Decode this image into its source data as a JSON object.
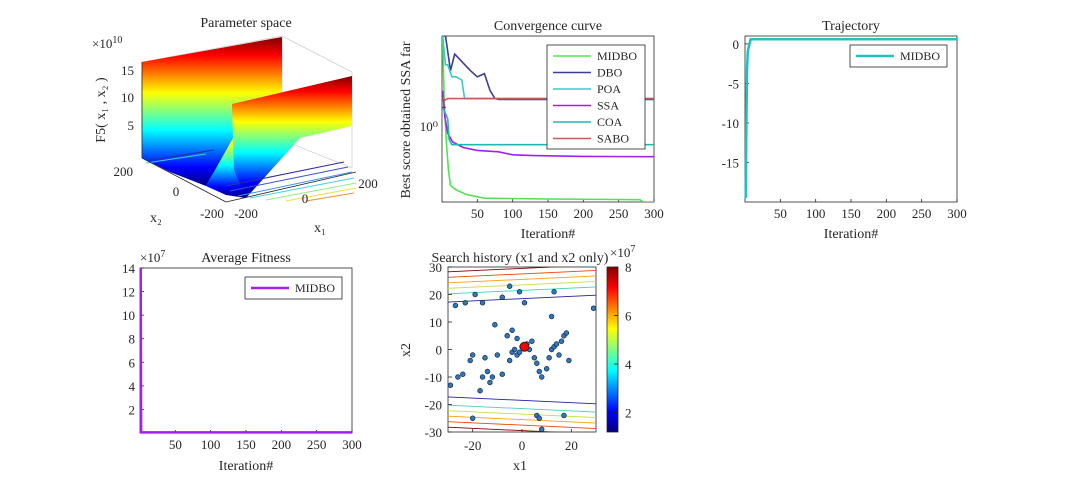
{
  "chart_data": [
    {
      "id": "parameter_space",
      "type": "surface",
      "title": "Parameter space",
      "zlabel": "F5( x₁ , x₂ )",
      "z_exponent": "×10",
      "z_exponent_power": "10",
      "zticks": [
        "5",
        "10",
        "15"
      ],
      "x1_label": "x₁",
      "x2_label": "x₂",
      "x1_ticks": [
        "-200",
        "0",
        "200"
      ],
      "x2_ticks": [
        "200",
        "0",
        "-200"
      ],
      "colormap": [
        "#00007f",
        "#0000ff",
        "#007fff",
        "#00ffff",
        "#7fff7f",
        "#ffff00",
        "#ff7f00",
        "#ff0000",
        "#7f0000"
      ]
    },
    {
      "id": "convergence_curve",
      "type": "line",
      "title": "Convergence curve",
      "xlabel": "Iteration#",
      "ylabel": "Best score obtained SSA far",
      "yscale": "log",
      "xlim": [
        0,
        300
      ],
      "ylim": [
        0.35,
        2.2
      ],
      "xticks": [
        "50",
        "100",
        "150",
        "200",
        "250",
        "300"
      ],
      "ytick_label": "10⁰",
      "ytick_value": 1,
      "legend_position": "top-right",
      "series": [
        {
          "name": "MIDBO",
          "color": "#4fe54f",
          "points": [
            [
              1,
              2.2
            ],
            [
              3,
              1.1
            ],
            [
              6,
              0.7
            ],
            [
              9,
              0.5
            ],
            [
              12,
              0.42
            ],
            [
              20,
              0.4
            ],
            [
              35,
              0.38
            ],
            [
              60,
              0.365
            ],
            [
              150,
              0.362
            ],
            [
              250,
              0.36
            ],
            [
              280,
              0.359
            ],
            [
              285,
              0.35
            ],
            [
              300,
              0.35
            ]
          ]
        },
        {
          "name": "DBO",
          "color": "#3b3f8f",
          "points": [
            [
              1,
              2.2
            ],
            [
              5,
              2.2
            ],
            [
              12,
              1.5
            ],
            [
              18,
              1.8
            ],
            [
              25,
              1.7
            ],
            [
              40,
              1.5
            ],
            [
              50,
              1.4
            ],
            [
              60,
              1.45
            ],
            [
              68,
              1.2
            ],
            [
              75,
              1.1
            ],
            [
              80,
              1.09
            ],
            [
              200,
              1.09
            ],
            [
              300,
              1.09
            ]
          ]
        },
        {
          "name": "POA",
          "color": "#3cc8c8",
          "points": [
            [
              1,
              2.2
            ],
            [
              5,
              1.6
            ],
            [
              8,
              1.6
            ],
            [
              14,
              1.4
            ],
            [
              20,
              1.4
            ],
            [
              28,
              1.35
            ],
            [
              32,
              1.1
            ],
            [
              300,
              1.1
            ]
          ]
        },
        {
          "name": "SSA",
          "color": "#a020f0",
          "points": [
            [
              1,
              1.2
            ],
            [
              4,
              0.9
            ],
            [
              8,
              0.75
            ],
            [
              15,
              0.68
            ],
            [
              30,
              0.64
            ],
            [
              50,
              0.62
            ],
            [
              80,
              0.61
            ],
            [
              100,
              0.59
            ],
            [
              130,
              0.585
            ],
            [
              200,
              0.58
            ],
            [
              300,
              0.578
            ]
          ]
        },
        {
          "name": "COA",
          "color": "#1fb8b0",
          "points": [
            [
              1,
              1.0
            ],
            [
              4,
              0.95
            ],
            [
              8,
              0.88
            ],
            [
              10,
              0.7
            ],
            [
              14,
              0.66
            ],
            [
              300,
              0.66
            ]
          ]
        },
        {
          "name": "SABO",
          "color": "#c85a5a",
          "points": [
            [
              1,
              1.12
            ],
            [
              4,
              1.08
            ],
            [
              8,
              1.1
            ],
            [
              300,
              1.1
            ]
          ]
        }
      ]
    },
    {
      "id": "trajectory",
      "type": "line",
      "title": "Trajectory",
      "xlabel": "Iteration#",
      "xlim": [
        0,
        300
      ],
      "ylim": [
        -20,
        1
      ],
      "xticks": [
        "50",
        "100",
        "150",
        "200",
        "250",
        "300"
      ],
      "yticks": [
        "0",
        "-5",
        "-10",
        "-15"
      ],
      "ytick_values": [
        0,
        -5,
        -10,
        -15
      ],
      "legend_position": "top-right",
      "series": [
        {
          "name": "MIDBO",
          "color": "#1fc0c0",
          "points": [
            [
              1,
              -19.5
            ],
            [
              2,
              -10
            ],
            [
              3,
              -3
            ],
            [
              4,
              -1
            ],
            [
              5,
              -0.5
            ],
            [
              8,
              0.6
            ],
            [
              300,
              0.6
            ]
          ]
        }
      ]
    },
    {
      "id": "average_fitness",
      "type": "line",
      "title": "Average Fitness",
      "xlabel": "Iteration#",
      "y_exponent": "×10",
      "y_exponent_power": "7",
      "xlim": [
        0,
        300
      ],
      "ylim": [
        0,
        14
      ],
      "xticks": [
        "50",
        "100",
        "150",
        "200",
        "250",
        "300"
      ],
      "yticks": [
        "14",
        "12",
        "10",
        "8",
        "6",
        "4",
        "2"
      ],
      "ytick_values": [
        14,
        12,
        10,
        8,
        6,
        4,
        2
      ],
      "legend_position": "top-right",
      "series": [
        {
          "name": "MIDBO",
          "color": "#a020f0",
          "points": [
            [
              1,
              14
            ],
            [
              1.5,
              0.05
            ],
            [
              300,
              0.05
            ]
          ]
        }
      ]
    },
    {
      "id": "search_history",
      "type": "scatter",
      "title": "Search history (x1 and x2 only)",
      "xlabel": "x1",
      "ylabel": "x2",
      "xlim": [
        -30,
        30
      ],
      "ylim": [
        -30,
        30
      ],
      "xticks": [
        "-20",
        "0",
        "20"
      ],
      "xtick_values": [
        -20,
        0,
        20
      ],
      "yticks": [
        "30",
        "20",
        "10",
        "0",
        "-10",
        "-20",
        "-30"
      ],
      "ytick_values": [
        30,
        20,
        10,
        0,
        -10,
        -20,
        -30
      ],
      "colorbar_exponent": "×10",
      "colorbar_exponent_power": "7",
      "colorbar_ticks": [
        "8",
        "6",
        "4",
        "2"
      ],
      "colorbar_tick_values": [
        8,
        6,
        4,
        2
      ],
      "colorbar_range": [
        1.2,
        8
      ],
      "contour_levels_x2": [
        -29.5,
        -27.5,
        -25.5,
        -23.5,
        -21.5,
        -18.5,
        18.5,
        21.5,
        23.5,
        25.5,
        27.5,
        29.5
      ],
      "points": [
        [
          -27,
          16
        ],
        [
          -23,
          17
        ],
        [
          -19,
          20
        ],
        [
          -16,
          17
        ],
        [
          -8,
          19
        ],
        [
          -5,
          23
        ],
        [
          -1,
          21
        ],
        [
          1,
          17
        ],
        [
          13,
          21
        ],
        [
          29,
          15
        ],
        [
          -20,
          -2
        ],
        [
          -21,
          -4
        ],
        [
          -24,
          -9
        ],
        [
          -29,
          -13
        ],
        [
          -26,
          -10
        ],
        [
          -14,
          -8
        ],
        [
          -12,
          -10
        ],
        [
          -8,
          -9
        ],
        [
          -16,
          -10
        ],
        [
          -17,
          -15
        ],
        [
          -5,
          -4
        ],
        [
          -4,
          -1
        ],
        [
          -2,
          -2
        ],
        [
          -3,
          0
        ],
        [
          -1,
          -1
        ],
        [
          0,
          1
        ],
        [
          2,
          2
        ],
        [
          3,
          0
        ],
        [
          4,
          3
        ],
        [
          5,
          -3
        ],
        [
          6,
          -5
        ],
        [
          7,
          -8
        ],
        [
          8,
          -10
        ],
        [
          10,
          -7
        ],
        [
          11,
          -3
        ],
        [
          12,
          0
        ],
        [
          13,
          1
        ],
        [
          14,
          2
        ],
        [
          15,
          -2
        ],
        [
          16,
          3
        ],
        [
          17,
          5
        ],
        [
          18,
          6
        ],
        [
          19,
          -4
        ],
        [
          -6,
          5
        ],
        [
          -4,
          7
        ],
        [
          -2,
          4
        ],
        [
          -11,
          9
        ],
        [
          -13,
          -12
        ],
        [
          -10,
          -2
        ],
        [
          -20,
          -25
        ],
        [
          -15,
          -3
        ],
        [
          6,
          -24
        ],
        [
          7,
          -25
        ],
        [
          17,
          -24
        ],
        [
          12,
          12
        ],
        [
          8,
          -29
        ]
      ],
      "best": [
        1,
        1
      ]
    }
  ]
}
